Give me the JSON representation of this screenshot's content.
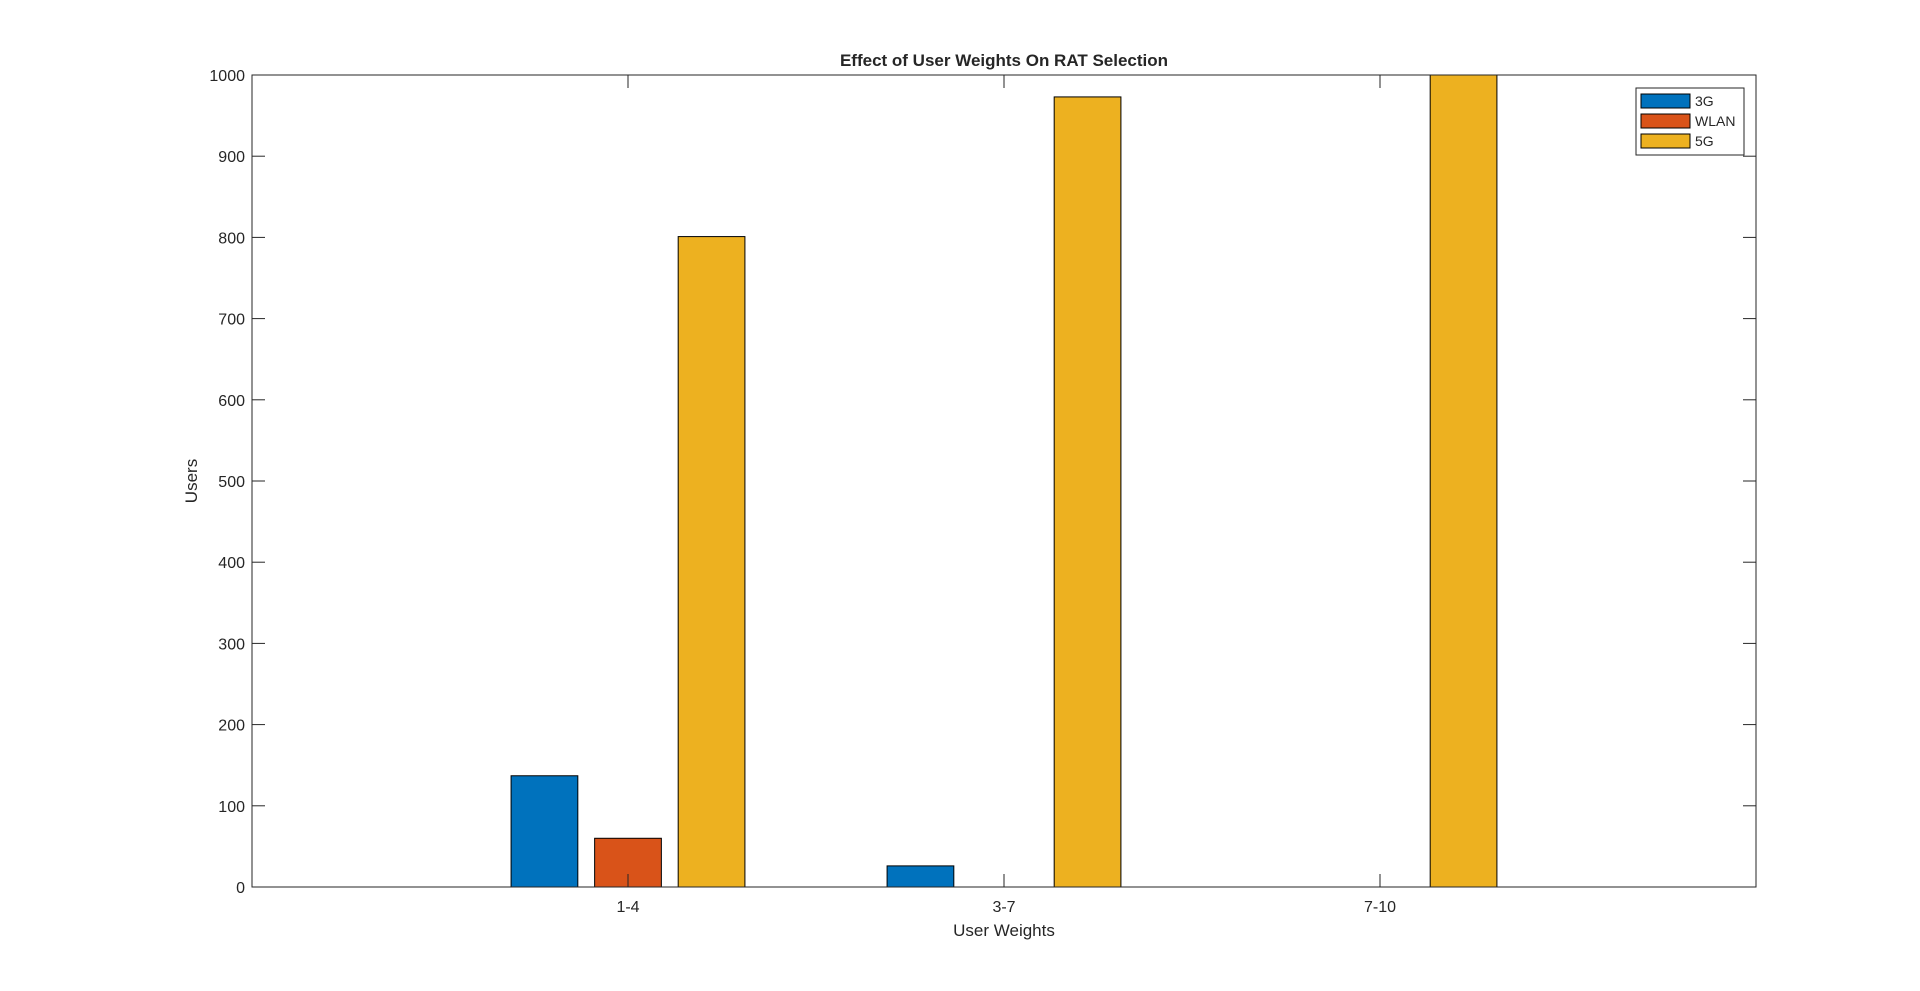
{
  "chart_data": {
    "type": "bar",
    "title": "Effect of User Weights On RAT Selection",
    "xlabel": "User Weights",
    "ylabel": "Users",
    "categories": [
      "1-4",
      "3-7",
      "7-10"
    ],
    "series": [
      {
        "name": "3G",
        "values": [
          137,
          26,
          0
        ],
        "color": "#0072BD"
      },
      {
        "name": "WLAN",
        "values": [
          60,
          0,
          0
        ],
        "color": "#D95319"
      },
      {
        "name": "5G",
        "values": [
          801,
          973,
          1000
        ],
        "color": "#EDB120"
      }
    ],
    "ylim": [
      0,
      1000
    ],
    "yticks": [
      "0",
      "100",
      "200",
      "300",
      "400",
      "500",
      "600",
      "700",
      "800",
      "900",
      "1000"
    ],
    "grid": false,
    "legend_position": "top-right"
  }
}
